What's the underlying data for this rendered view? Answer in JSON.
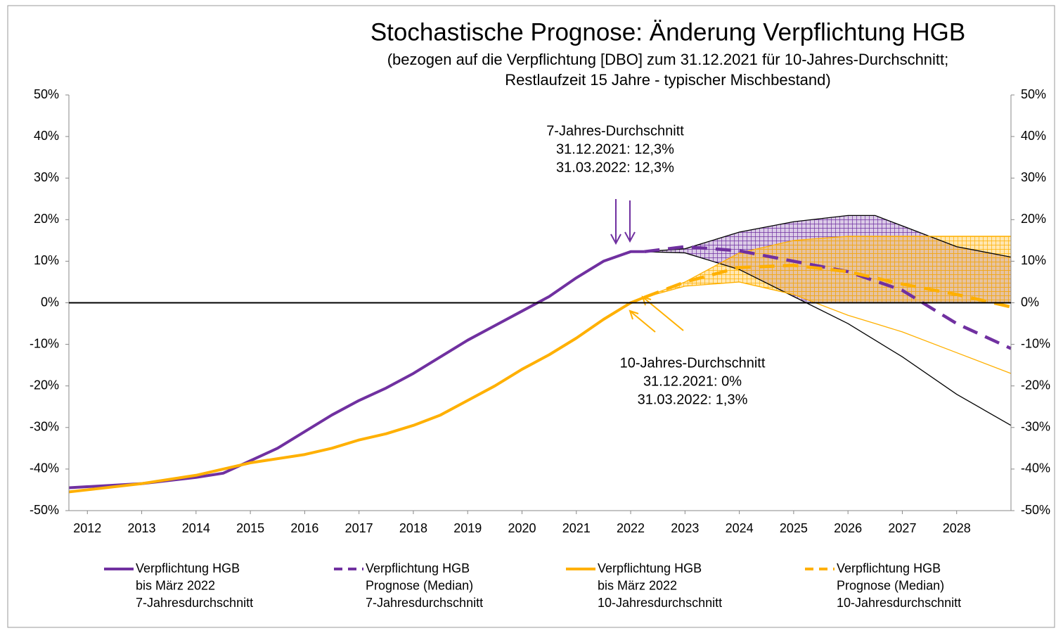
{
  "chart_data": {
    "type": "line",
    "title": "Stochastische Prognose: Änderung Verpflichtung HGB",
    "subtitle": [
      "(bezogen auf die Verpflichtung [DBO] zum 31.12.2021 für 10-Jahres-Durchschnitt;",
      "Restlaufzeit 15 Jahre - typischer Mischbestand)"
    ],
    "xlim": [
      2011.66,
      2029.0
    ],
    "xticks": [
      2012,
      2013,
      2014,
      2015,
      2016,
      2017,
      2018,
      2019,
      2020,
      2021,
      2022,
      2023,
      2024,
      2025,
      2026,
      2027,
      2028
    ],
    "ylim": [
      -50,
      50
    ],
    "yticks": [
      {
        "value": 50,
        "label": "50%"
      },
      {
        "value": 40,
        "label": "40%"
      },
      {
        "value": 30,
        "label": "30%"
      },
      {
        "value": 20,
        "label": "20%"
      },
      {
        "value": 10,
        "label": "10%"
      },
      {
        "value": 0,
        "label": "0%"
      },
      {
        "value": -10,
        "label": "-10%"
      },
      {
        "value": -20,
        "label": "-20%"
      },
      {
        "value": -30,
        "label": "-30%"
      },
      {
        "value": -40,
        "label": "-40%"
      },
      {
        "value": -50,
        "label": "-50%"
      }
    ],
    "y2lim": [
      -50,
      50
    ],
    "y2ticks": [
      {
        "value": 50,
        "label": "50%"
      },
      {
        "value": 40,
        "label": "40%"
      },
      {
        "value": 30,
        "label": "30%"
      },
      {
        "value": 20,
        "label": "20%"
      },
      {
        "value": 10,
        "label": "10%"
      },
      {
        "value": 0,
        "label": "0%"
      },
      {
        "value": -10,
        "label": "-10%"
      },
      {
        "value": -20,
        "label": "-20%"
      },
      {
        "value": -30,
        "label": "-30%"
      },
      {
        "value": -40,
        "label": "-40%"
      },
      {
        "value": -50,
        "label": "-50%"
      }
    ],
    "bands": [
      {
        "color": "#7030a0",
        "edge_color": "#000000",
        "x": [
          2022.25,
          2023,
          2024,
          2025,
          2026,
          2026.5,
          2027,
          2028,
          2029
        ],
        "upper": [
          12.3,
          13,
          17,
          19.5,
          21,
          21,
          18.5,
          13.5,
          11
        ],
        "lower": [
          12.3,
          12,
          8,
          1.5,
          -5,
          -9,
          -13,
          -22,
          -29.5
        ]
      },
      {
        "color": "#ffb000",
        "edge_color": "#ffb000",
        "x": [
          2022.25,
          2023,
          2024,
          2025,
          2026,
          2026.5,
          2027,
          2028,
          2029
        ],
        "upper": [
          1.3,
          5,
          12,
          15,
          16,
          16,
          16,
          16,
          16
        ],
        "lower": [
          1.3,
          4,
          5,
          2,
          -3,
          -5,
          -7,
          -12,
          -17
        ]
      }
    ],
    "series": [
      {
        "name": [
          "Verpflichtung HGB",
          "bis März 2022",
          "7-Jahresdurchschnitt"
        ],
        "color": "#7030a0",
        "dash": false,
        "x": [
          2011.66,
          2013,
          2014,
          2014.5,
          2015,
          2015.5,
          2016,
          2016.5,
          2017,
          2017.5,
          2018,
          2018.5,
          2019,
          2019.5,
          2020,
          2020.5,
          2021,
          2021.5,
          2022,
          2022.25
        ],
        "values": [
          -44.5,
          -43.5,
          -42,
          -41,
          -38,
          -35,
          -31,
          -27,
          -23.5,
          -20.5,
          -17,
          -13,
          -9,
          -5.5,
          -2,
          1.5,
          6,
          10,
          12.3,
          12.3
        ]
      },
      {
        "name": [
          "Verpflichtung HGB",
          "Prognose (Median)",
          "7-Jahresdurchschnitt"
        ],
        "color": "#7030a0",
        "dash": true,
        "x": [
          2022.25,
          2023,
          2024,
          2025,
          2026,
          2027,
          2028,
          2029
        ],
        "values": [
          12.3,
          13.5,
          12.5,
          10,
          7.5,
          3,
          -5,
          -11
        ]
      },
      {
        "name": [
          "Verpflichtung HGB",
          "bis März 2022",
          "10-Jahresdurchschnitt"
        ],
        "color": "#ffb000",
        "dash": false,
        "x": [
          2011.66,
          2013,
          2014,
          2015,
          2016,
          2016.5,
          2017,
          2017.5,
          2018,
          2018.5,
          2019,
          2019.5,
          2020,
          2020.5,
          2021,
          2021.5,
          2022,
          2022.25
        ],
        "values": [
          -45.5,
          -43.5,
          -41.5,
          -38.5,
          -36.5,
          -35,
          -33,
          -31.5,
          -29.5,
          -27,
          -23.5,
          -20,
          -16,
          -12.5,
          -8.5,
          -4,
          0,
          1.3
        ]
      },
      {
        "name": [
          "Verpflichtung HGB",
          "Prognose (Median)",
          "10-Jahresdurchschnitt"
        ],
        "color": "#ffb000",
        "dash": true,
        "x": [
          2022.25,
          2023,
          2024,
          2025,
          2026,
          2027,
          2028,
          2029
        ],
        "values": [
          1.3,
          5,
          8.5,
          9,
          7.5,
          4.5,
          2,
          -1
        ]
      }
    ],
    "annotations": [
      [
        "7-Jahres-Durchschnitt",
        "31.12.2021: 12,3%",
        "31.03.2022: 12,3%"
      ],
      [
        "10-Jahres-Durchschnitt",
        "31.12.2021: 0%",
        "31.03.2022: 1,3%"
      ]
    ]
  }
}
